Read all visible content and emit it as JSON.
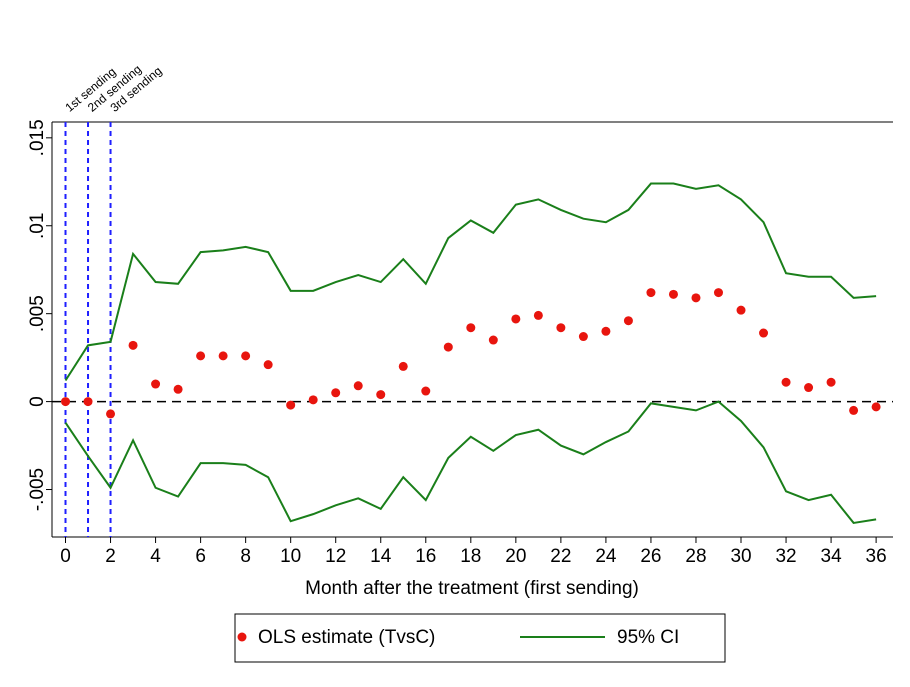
{
  "chart_data": {
    "type": "scatter_ci",
    "x_label": "Month after the treatment (first sending)",
    "x": [
      0,
      1,
      2,
      3,
      4,
      5,
      6,
      7,
      8,
      9,
      10,
      11,
      12,
      13,
      14,
      15,
      16,
      17,
      18,
      19,
      20,
      21,
      22,
      23,
      24,
      25,
      26,
      27,
      28,
      29,
      30,
      31,
      32,
      33,
      34,
      35,
      36
    ],
    "series": [
      {
        "name": "OLS estimate (TvsC)",
        "color": "#e8150e",
        "values": [
          0,
          0,
          -0.0007,
          0.0032,
          0.001,
          0.0007,
          0.0026,
          0.0026,
          0.0026,
          0.0021,
          -0.0002,
          0.0001,
          0.0005,
          0.0009,
          0.0004,
          0.002,
          0.0006,
          0.0031,
          0.0042,
          0.0035,
          0.0047,
          0.0049,
          0.0042,
          0.0037,
          0.004,
          0.0046,
          0.0062,
          0.0061,
          0.0059,
          0.0062,
          0.0052,
          0.0039,
          0.0011,
          0.0008,
          0.0011,
          -0.0005,
          -0.0003
        ]
      },
      {
        "name": "95% CI",
        "color": "#1a7f1a",
        "upper": [
          0.0012,
          0.0032,
          0.0034,
          0.0084,
          0.0068,
          0.0067,
          0.0085,
          0.0086,
          0.0088,
          0.0085,
          0.0063,
          0.0063,
          0.0068,
          0.0072,
          0.0068,
          0.0081,
          0.0067,
          0.0093,
          0.0103,
          0.0096,
          0.0112,
          0.0115,
          0.0109,
          0.0104,
          0.0102,
          0.0109,
          0.0124,
          0.0124,
          0.0121,
          0.0123,
          0.0115,
          0.0102,
          0.0073,
          0.0071,
          0.0071,
          0.0059,
          0.006
        ],
        "lower": [
          -0.0012,
          -0.0031,
          -0.0049,
          -0.0022,
          -0.0049,
          -0.0054,
          -0.0035,
          -0.0035,
          -0.0036,
          -0.0043,
          -0.0068,
          -0.0064,
          -0.0059,
          -0.0055,
          -0.0061,
          -0.0043,
          -0.0056,
          -0.0032,
          -0.002,
          -0.0028,
          -0.0019,
          -0.0016,
          -0.0025,
          -0.003,
          -0.0023,
          -0.0017,
          -0.0001,
          -0.0003,
          -0.0005,
          0,
          -0.0011,
          -0.0026,
          -0.0051,
          -0.0056,
          -0.0053,
          -0.0069,
          -0.0067
        ]
      }
    ],
    "xlim": [
      -0.6,
      36.75
    ],
    "ylim": [
      -0.0077,
      0.0159
    ],
    "xticks": [
      0,
      2,
      4,
      6,
      8,
      10,
      12,
      14,
      16,
      18,
      20,
      22,
      24,
      26,
      28,
      30,
      32,
      34,
      36
    ],
    "yticks": [
      {
        "value": -0.005,
        "label": "-.005"
      },
      0,
      {
        "value": 0.005,
        "label": ".005"
      },
      {
        "value": 0.01,
        "label": ".01"
      },
      {
        "value": 0.015,
        "label": ".015"
      }
    ],
    "refline_y": 0,
    "annotations": [
      {
        "x": 0,
        "label": "1st sending"
      },
      {
        "x": 1,
        "label": "2nd sending"
      },
      {
        "x": 2,
        "label": "3rd sending"
      }
    ],
    "annotation_color": "#1f1fff",
    "legend": "bottom"
  }
}
